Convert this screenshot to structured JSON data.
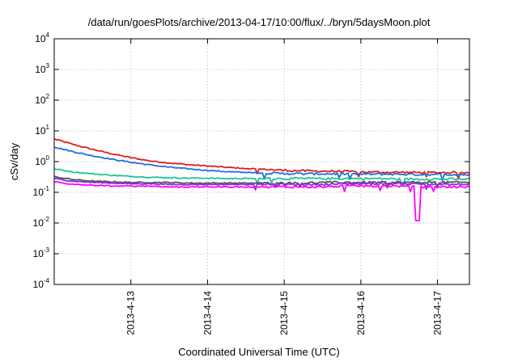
{
  "chart_data": {
    "type": "line",
    "title": "/data/run/goesPlots/archive/2013-04-17/10:00/flux/../bryn/5daysMoon.plot",
    "xlabel": "Coordinated Universal Time (UTC)",
    "ylabel": "cSv/day",
    "yscale": "log",
    "ylim": [
      0.0001,
      10000
    ],
    "y_ticks": [
      {
        "base": "10",
        "exp": "-4",
        "value": 0.0001
      },
      {
        "base": "10",
        "exp": "-3",
        "value": 0.001
      },
      {
        "base": "10",
        "exp": "-2",
        "value": 0.01
      },
      {
        "base": "10",
        "exp": "-1",
        "value": 0.1
      },
      {
        "base": "10",
        "exp": "0",
        "value": 1
      },
      {
        "base": "10",
        "exp": "1",
        "value": 10
      },
      {
        "base": "10",
        "exp": "2",
        "value": 100
      },
      {
        "base": "10",
        "exp": "3",
        "value": 1000
      },
      {
        "base": "10",
        "exp": "4",
        "value": 10000
      }
    ],
    "xlim": [
      "2013-04-12",
      "2013-04-17 10:00"
    ],
    "x_ticks": [
      {
        "label": "2013-4-13",
        "value": "2013-04-13"
      },
      {
        "label": "2013-4-14",
        "value": "2013-04-14"
      },
      {
        "label": "2013-4-15",
        "value": "2013-04-15"
      },
      {
        "label": "2013-4-16",
        "value": "2013-04-16"
      },
      {
        "label": "2013-4-17",
        "value": "2013-04-17"
      }
    ],
    "grid": true,
    "legend": "none",
    "series": [
      {
        "color": "#e41a1c",
        "x": [
          "2013-04-12 00:00",
          "2013-04-12 06:00",
          "2013-04-12 12:00",
          "2013-04-12 18:00",
          "2013-04-13 00:00",
          "2013-04-13 06:00",
          "2013-04-13 12:00",
          "2013-04-13 18:00",
          "2013-04-14 00:00",
          "2013-04-14 06:00",
          "2013-04-14 12:00",
          "2013-04-14 18:00",
          "2013-04-15 00:00",
          "2013-04-15 06:00",
          "2013-04-15 12:00",
          "2013-04-15 18:00",
          "2013-04-16 00:00",
          "2013-04-16 06:00",
          "2013-04-16 12:00",
          "2013-04-16 18:00",
          "2013-04-17 00:00",
          "2013-04-17 06:00",
          "2013-04-17 10:00"
        ],
        "y": [
          5.5,
          3.6,
          2.5,
          1.8,
          1.35,
          1.05,
          0.9,
          0.8,
          0.72,
          0.65,
          0.6,
          0.56,
          0.52,
          0.5,
          0.49,
          0.48,
          0.46,
          0.45,
          0.45,
          0.44,
          0.44,
          0.44,
          0.43
        ]
      },
      {
        "color": "#1f6fe0",
        "x": [
          "2013-04-12 00:00",
          "2013-04-12 06:00",
          "2013-04-12 12:00",
          "2013-04-12 18:00",
          "2013-04-13 00:00",
          "2013-04-13 06:00",
          "2013-04-13 12:00",
          "2013-04-13 18:00",
          "2013-04-14 00:00",
          "2013-04-14 06:00",
          "2013-04-14 12:00",
          "2013-04-14 18:00",
          "2013-04-15 00:00",
          "2013-04-15 06:00",
          "2013-04-15 12:00",
          "2013-04-15 18:00",
          "2013-04-16 00:00",
          "2013-04-16 06:00",
          "2013-04-16 12:00",
          "2013-04-16 18:00",
          "2013-04-17 00:00",
          "2013-04-17 06:00",
          "2013-04-17 10:00"
        ],
        "y": [
          3.0,
          2.1,
          1.55,
          1.2,
          0.95,
          0.78,
          0.66,
          0.58,
          0.52,
          0.47,
          0.44,
          0.42,
          0.41,
          0.4,
          0.4,
          0.4,
          0.39,
          0.39,
          0.39,
          0.38,
          0.38,
          0.38,
          0.37
        ]
      },
      {
        "color": "#1fc49a",
        "x": [
          "2013-04-12 00:00",
          "2013-04-12 06:00",
          "2013-04-12 12:00",
          "2013-04-12 18:00",
          "2013-04-13 00:00",
          "2013-04-13 06:00",
          "2013-04-13 12:00",
          "2013-04-13 18:00",
          "2013-04-14 00:00",
          "2013-04-14 06:00",
          "2013-04-14 12:00",
          "2013-04-14 18:00",
          "2013-04-15 00:00",
          "2013-04-15 06:00",
          "2013-04-15 12:00",
          "2013-04-15 18:00",
          "2013-04-16 00:00",
          "2013-04-16 06:00",
          "2013-04-16 12:00",
          "2013-04-16 18:00",
          "2013-04-17 00:00",
          "2013-04-17 06:00",
          "2013-04-17 10:00"
        ],
        "y": [
          0.58,
          0.46,
          0.4,
          0.36,
          0.33,
          0.31,
          0.3,
          0.29,
          0.29,
          0.28,
          0.28,
          0.28,
          0.28,
          0.28,
          0.28,
          0.28,
          0.28,
          0.28,
          0.27,
          0.27,
          0.27,
          0.27,
          0.27
        ]
      },
      {
        "color": "#555555",
        "x": [
          "2013-04-12 00:00",
          "2013-04-12 06:00",
          "2013-04-12 12:00",
          "2013-04-12 18:00",
          "2013-04-13 00:00",
          "2013-04-13 06:00",
          "2013-04-13 12:00",
          "2013-04-13 18:00",
          "2013-04-14 00:00",
          "2013-04-14 06:00",
          "2013-04-14 12:00",
          "2013-04-14 18:00",
          "2013-04-15 00:00",
          "2013-04-15 06:00",
          "2013-04-15 12:00",
          "2013-04-15 18:00",
          "2013-04-16 00:00",
          "2013-04-16 06:00",
          "2013-04-16 12:00",
          "2013-04-16 18:00",
          "2013-04-17 00:00",
          "2013-04-17 06:00",
          "2013-04-17 10:00"
        ],
        "y": [
          0.32,
          0.26,
          0.23,
          0.22,
          0.21,
          0.21,
          0.21,
          0.2,
          0.2,
          0.2,
          0.2,
          0.2,
          0.2,
          0.2,
          0.21,
          0.21,
          0.21,
          0.21,
          0.21,
          0.21,
          0.21,
          0.21,
          0.21
        ]
      },
      {
        "color": "#8a2be2",
        "x": [
          "2013-04-12 00:00",
          "2013-04-12 06:00",
          "2013-04-12 12:00",
          "2013-04-12 18:00",
          "2013-04-13 00:00",
          "2013-04-13 06:00",
          "2013-04-13 12:00",
          "2013-04-13 18:00",
          "2013-04-14 00:00",
          "2013-04-14 06:00",
          "2013-04-14 12:00",
          "2013-04-14 18:00",
          "2013-04-15 00:00",
          "2013-04-15 06:00",
          "2013-04-15 12:00",
          "2013-04-15 18:00",
          "2013-04-16 00:00",
          "2013-04-16 06:00",
          "2013-04-16 12:00",
          "2013-04-16 18:00",
          "2013-04-17 00:00",
          "2013-04-17 06:00",
          "2013-04-17 10:00"
        ],
        "y": [
          0.28,
          0.23,
          0.21,
          0.2,
          0.19,
          0.19,
          0.18,
          0.18,
          0.18,
          0.18,
          0.18,
          0.18,
          0.18,
          0.18,
          0.18,
          0.19,
          0.19,
          0.19,
          0.19,
          0.19,
          0.18,
          0.18,
          0.18
        ]
      },
      {
        "color": "#ff00ff",
        "x": [
          "2013-04-12 00:00",
          "2013-04-12 06:00",
          "2013-04-12 12:00",
          "2013-04-12 18:00",
          "2013-04-13 00:00",
          "2013-04-13 06:00",
          "2013-04-13 12:00",
          "2013-04-13 18:00",
          "2013-04-14 00:00",
          "2013-04-14 06:00",
          "2013-04-14 12:00",
          "2013-04-14 18:00",
          "2013-04-15 00:00",
          "2013-04-15 06:00",
          "2013-04-15 12:00",
          "2013-04-15 18:00",
          "2013-04-16 00:00",
          "2013-04-16 06:00",
          "2013-04-16 12:00",
          "2013-04-16 18:00",
          "2013-04-17 00:00",
          "2013-04-17 06:00",
          "2013-04-17 10:00"
        ],
        "y": [
          0.22,
          0.18,
          0.17,
          0.16,
          0.16,
          0.16,
          0.15,
          0.15,
          0.15,
          0.15,
          0.15,
          0.15,
          0.15,
          0.15,
          0.15,
          0.16,
          0.16,
          0.16,
          0.16,
          0.15,
          0.15,
          0.15,
          0.15
        ],
        "spike": {
          "x": "2013-04-16 18:00",
          "y": 0.012
        }
      }
    ]
  }
}
